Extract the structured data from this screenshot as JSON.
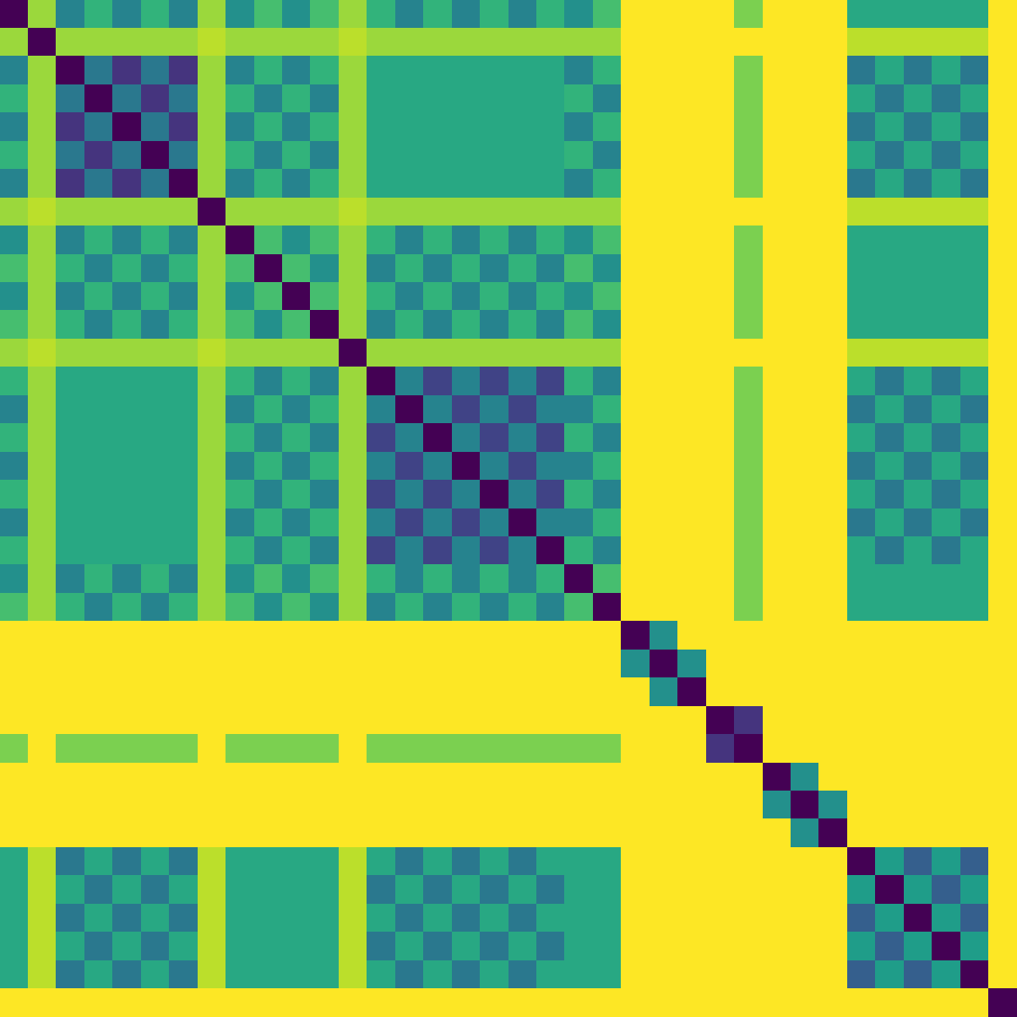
{
  "chart_data": {
    "type": "heatmap",
    "grid": false,
    "tick_labels": false,
    "cells": [
      [
        0,
        0.85,
        0.45,
        0.65,
        0.45,
        0.65,
        0.45,
        0.85,
        0.5,
        0.7,
        0.5,
        0.7,
        0.85,
        0.65,
        0.45,
        0.65,
        0.45,
        0.65,
        0.45,
        0.65,
        0.5,
        0.7,
        1,
        1,
        1,
        1,
        0.8,
        1,
        1,
        1,
        0.6,
        0.6,
        0.6,
        0.6,
        0.6,
        1
      ],
      [
        0.85,
        0,
        0.85,
        0.85,
        0.85,
        0.85,
        0.85,
        0.9,
        0.85,
        0.85,
        0.85,
        0.85,
        0.9,
        0.85,
        0.85,
        0.85,
        0.85,
        0.85,
        0.85,
        0.85,
        0.85,
        0.85,
        1,
        1,
        1,
        1,
        1,
        1,
        1,
        1,
        0.9,
        0.9,
        0.9,
        0.9,
        0.9,
        1
      ],
      [
        0.45,
        0.85,
        0,
        0.4,
        0.15,
        0.4,
        0.15,
        0.85,
        0.45,
        0.65,
        0.45,
        0.65,
        0.85,
        0.6,
        0.6,
        0.6,
        0.6,
        0.6,
        0.6,
        0.6,
        0.45,
        0.65,
        1,
        1,
        1,
        1,
        0.8,
        1,
        1,
        1,
        0.4,
        0.6,
        0.4,
        0.6,
        0.4,
        1
      ],
      [
        0.65,
        0.85,
        0.4,
        0,
        0.4,
        0.15,
        0.4,
        0.85,
        0.65,
        0.45,
        0.65,
        0.45,
        0.85,
        0.6,
        0.6,
        0.6,
        0.6,
        0.6,
        0.6,
        0.6,
        0.65,
        0.45,
        1,
        1,
        1,
        1,
        0.8,
        1,
        1,
        1,
        0.6,
        0.4,
        0.6,
        0.4,
        0.6,
        1
      ],
      [
        0.45,
        0.85,
        0.15,
        0.4,
        0,
        0.4,
        0.15,
        0.85,
        0.45,
        0.65,
        0.45,
        0.65,
        0.85,
        0.6,
        0.6,
        0.6,
        0.6,
        0.6,
        0.6,
        0.6,
        0.45,
        0.65,
        1,
        1,
        1,
        1,
        0.8,
        1,
        1,
        1,
        0.4,
        0.6,
        0.4,
        0.6,
        0.4,
        1
      ],
      [
        0.65,
        0.85,
        0.4,
        0.15,
        0.4,
        0,
        0.4,
        0.85,
        0.65,
        0.45,
        0.65,
        0.45,
        0.85,
        0.6,
        0.6,
        0.6,
        0.6,
        0.6,
        0.6,
        0.6,
        0.65,
        0.45,
        1,
        1,
        1,
        1,
        0.8,
        1,
        1,
        1,
        0.6,
        0.4,
        0.6,
        0.4,
        0.6,
        1
      ],
      [
        0.45,
        0.85,
        0.15,
        0.4,
        0.15,
        0.4,
        0,
        0.85,
        0.45,
        0.65,
        0.45,
        0.65,
        0.85,
        0.6,
        0.6,
        0.6,
        0.6,
        0.6,
        0.6,
        0.6,
        0.45,
        0.65,
        1,
        1,
        1,
        1,
        0.8,
        1,
        1,
        1,
        0.4,
        0.6,
        0.4,
        0.6,
        0.4,
        1
      ],
      [
        0.85,
        0.9,
        0.85,
        0.85,
        0.85,
        0.85,
        0.85,
        0,
        0.85,
        0.85,
        0.85,
        0.85,
        0.9,
        0.85,
        0.85,
        0.85,
        0.85,
        0.85,
        0.85,
        0.85,
        0.85,
        0.85,
        1,
        1,
        1,
        1,
        1,
        1,
        1,
        1,
        0.9,
        0.9,
        0.9,
        0.9,
        0.9,
        1
      ],
      [
        0.5,
        0.85,
        0.45,
        0.65,
        0.45,
        0.65,
        0.45,
        0.85,
        0,
        0.7,
        0.5,
        0.7,
        0.85,
        0.65,
        0.45,
        0.65,
        0.45,
        0.65,
        0.45,
        0.65,
        0.5,
        0.7,
        1,
        1,
        1,
        1,
        0.8,
        1,
        1,
        1,
        0.6,
        0.6,
        0.6,
        0.6,
        0.6,
        1
      ],
      [
        0.7,
        0.85,
        0.65,
        0.45,
        0.65,
        0.45,
        0.65,
        0.85,
        0.7,
        0,
        0.7,
        0.5,
        0.85,
        0.45,
        0.65,
        0.45,
        0.65,
        0.45,
        0.65,
        0.45,
        0.7,
        0.5,
        1,
        1,
        1,
        1,
        0.8,
        1,
        1,
        1,
        0.6,
        0.6,
        0.6,
        0.6,
        0.6,
        1
      ],
      [
        0.5,
        0.85,
        0.45,
        0.65,
        0.45,
        0.65,
        0.45,
        0.85,
        0.5,
        0.7,
        0,
        0.7,
        0.85,
        0.65,
        0.45,
        0.65,
        0.45,
        0.65,
        0.45,
        0.65,
        0.5,
        0.7,
        1,
        1,
        1,
        1,
        0.8,
        1,
        1,
        1,
        0.6,
        0.6,
        0.6,
        0.6,
        0.6,
        1
      ],
      [
        0.7,
        0.85,
        0.65,
        0.45,
        0.65,
        0.45,
        0.65,
        0.85,
        0.7,
        0.5,
        0.7,
        0,
        0.85,
        0.45,
        0.65,
        0.45,
        0.65,
        0.45,
        0.65,
        0.45,
        0.7,
        0.5,
        1,
        1,
        1,
        1,
        0.8,
        1,
        1,
        1,
        0.6,
        0.6,
        0.6,
        0.6,
        0.6,
        1
      ],
      [
        0.85,
        0.9,
        0.85,
        0.85,
        0.85,
        0.85,
        0.85,
        0.9,
        0.85,
        0.85,
        0.85,
        0.85,
        0,
        0.85,
        0.85,
        0.85,
        0.85,
        0.85,
        0.85,
        0.85,
        0.85,
        0.85,
        1,
        1,
        1,
        1,
        1,
        1,
        1,
        1,
        0.9,
        0.9,
        0.9,
        0.9,
        0.9,
        1
      ],
      [
        0.65,
        0.85,
        0.6,
        0.6,
        0.6,
        0.6,
        0.6,
        0.85,
        0.65,
        0.45,
        0.65,
        0.45,
        0.85,
        0,
        0.45,
        0.2,
        0.45,
        0.2,
        0.45,
        0.2,
        0.65,
        0.45,
        1,
        1,
        1,
        1,
        0.8,
        1,
        1,
        1,
        0.6,
        0.4,
        0.6,
        0.4,
        0.6,
        1
      ],
      [
        0.45,
        0.85,
        0.6,
        0.6,
        0.6,
        0.6,
        0.6,
        0.85,
        0.45,
        0.65,
        0.45,
        0.65,
        0.85,
        0.45,
        0,
        0.45,
        0.2,
        0.45,
        0.2,
        0.45,
        0.45,
        0.65,
        1,
        1,
        1,
        1,
        0.8,
        1,
        1,
        1,
        0.4,
        0.6,
        0.4,
        0.6,
        0.4,
        1
      ],
      [
        0.65,
        0.85,
        0.6,
        0.6,
        0.6,
        0.6,
        0.6,
        0.85,
        0.65,
        0.45,
        0.65,
        0.45,
        0.85,
        0.2,
        0.45,
        0,
        0.45,
        0.2,
        0.45,
        0.2,
        0.65,
        0.45,
        1,
        1,
        1,
        1,
        0.8,
        1,
        1,
        1,
        0.6,
        0.4,
        0.6,
        0.4,
        0.6,
        1
      ],
      [
        0.45,
        0.85,
        0.6,
        0.6,
        0.6,
        0.6,
        0.6,
        0.85,
        0.45,
        0.65,
        0.45,
        0.65,
        0.85,
        0.45,
        0.2,
        0.45,
        0,
        0.45,
        0.2,
        0.45,
        0.45,
        0.65,
        1,
        1,
        1,
        1,
        0.8,
        1,
        1,
        1,
        0.4,
        0.6,
        0.4,
        0.6,
        0.4,
        1
      ],
      [
        0.65,
        0.85,
        0.6,
        0.6,
        0.6,
        0.6,
        0.6,
        0.85,
        0.65,
        0.45,
        0.65,
        0.45,
        0.85,
        0.2,
        0.45,
        0.2,
        0.45,
        0,
        0.45,
        0.2,
        0.65,
        0.45,
        1,
        1,
        1,
        1,
        0.8,
        1,
        1,
        1,
        0.6,
        0.4,
        0.6,
        0.4,
        0.6,
        1
      ],
      [
        0.45,
        0.85,
        0.6,
        0.6,
        0.6,
        0.6,
        0.6,
        0.85,
        0.45,
        0.65,
        0.45,
        0.65,
        0.85,
        0.45,
        0.2,
        0.45,
        0.2,
        0.45,
        0,
        0.45,
        0.45,
        0.65,
        1,
        1,
        1,
        1,
        0.8,
        1,
        1,
        1,
        0.4,
        0.6,
        0.4,
        0.6,
        0.4,
        1
      ],
      [
        0.65,
        0.85,
        0.6,
        0.6,
        0.6,
        0.6,
        0.6,
        0.85,
        0.65,
        0.45,
        0.65,
        0.45,
        0.85,
        0.2,
        0.45,
        0.2,
        0.45,
        0.2,
        0.45,
        0,
        0.65,
        0.45,
        1,
        1,
        1,
        1,
        0.8,
        1,
        1,
        1,
        0.6,
        0.4,
        0.6,
        0.4,
        0.6,
        1
      ],
      [
        0.5,
        0.85,
        0.45,
        0.65,
        0.45,
        0.65,
        0.45,
        0.85,
        0.5,
        0.7,
        0.5,
        0.7,
        0.85,
        0.65,
        0.45,
        0.65,
        0.45,
        0.65,
        0.45,
        0.65,
        0,
        0.7,
        1,
        1,
        1,
        1,
        0.8,
        1,
        1,
        1,
        0.6,
        0.6,
        0.6,
        0.6,
        0.6,
        1
      ],
      [
        0.7,
        0.85,
        0.65,
        0.45,
        0.65,
        0.45,
        0.65,
        0.85,
        0.7,
        0.5,
        0.7,
        0.5,
        0.85,
        0.45,
        0.65,
        0.45,
        0.65,
        0.45,
        0.65,
        0.45,
        0.7,
        0,
        1,
        1,
        1,
        1,
        0.8,
        1,
        1,
        1,
        0.6,
        0.6,
        0.6,
        0.6,
        0.6,
        1
      ],
      [
        1,
        1,
        1,
        1,
        1,
        1,
        1,
        1,
        1,
        1,
        1,
        1,
        1,
        1,
        1,
        1,
        1,
        1,
        1,
        1,
        1,
        1,
        0,
        0.5,
        1,
        1,
        1,
        1,
        1,
        1,
        1,
        1,
        1,
        1,
        1,
        1
      ],
      [
        1,
        1,
        1,
        1,
        1,
        1,
        1,
        1,
        1,
        1,
        1,
        1,
        1,
        1,
        1,
        1,
        1,
        1,
        1,
        1,
        1,
        1,
        0.5,
        0,
        0.5,
        1,
        1,
        1,
        1,
        1,
        1,
        1,
        1,
        1,
        1,
        1
      ],
      [
        1,
        1,
        1,
        1,
        1,
        1,
        1,
        1,
        1,
        1,
        1,
        1,
        1,
        1,
        1,
        1,
        1,
        1,
        1,
        1,
        1,
        1,
        1,
        0.5,
        0,
        1,
        1,
        1,
        1,
        1,
        1,
        1,
        1,
        1,
        1,
        1
      ],
      [
        1,
        1,
        1,
        1,
        1,
        1,
        1,
        1,
        1,
        1,
        1,
        1,
        1,
        1,
        1,
        1,
        1,
        1,
        1,
        1,
        1,
        1,
        1,
        1,
        1,
        0,
        0.15,
        1,
        1,
        1,
        1,
        1,
        1,
        1,
        1,
        1
      ],
      [
        0.8,
        1,
        0.8,
        0.8,
        0.8,
        0.8,
        0.8,
        1,
        0.8,
        0.8,
        0.8,
        0.8,
        1,
        0.8,
        0.8,
        0.8,
        0.8,
        0.8,
        0.8,
        0.8,
        0.8,
        0.8,
        1,
        1,
        1,
        0.15,
        0,
        1,
        1,
        1,
        1,
        1,
        1,
        1,
        1,
        1
      ],
      [
        1,
        1,
        1,
        1,
        1,
        1,
        1,
        1,
        1,
        1,
        1,
        1,
        1,
        1,
        1,
        1,
        1,
        1,
        1,
        1,
        1,
        1,
        1,
        1,
        1,
        1,
        1,
        0,
        0.5,
        1,
        1,
        1,
        1,
        1,
        1,
        1
      ],
      [
        1,
        1,
        1,
        1,
        1,
        1,
        1,
        1,
        1,
        1,
        1,
        1,
        1,
        1,
        1,
        1,
        1,
        1,
        1,
        1,
        1,
        1,
        1,
        1,
        1,
        1,
        1,
        0.5,
        0,
        0.5,
        1,
        1,
        1,
        1,
        1,
        1
      ],
      [
        1,
        1,
        1,
        1,
        1,
        1,
        1,
        1,
        1,
        1,
        1,
        1,
        1,
        1,
        1,
        1,
        1,
        1,
        1,
        1,
        1,
        1,
        1,
        1,
        1,
        1,
        1,
        1,
        0.5,
        0,
        1,
        1,
        1,
        1,
        1,
        1
      ],
      [
        0.6,
        0.9,
        0.4,
        0.6,
        0.4,
        0.6,
        0.4,
        0.9,
        0.6,
        0.6,
        0.6,
        0.6,
        0.9,
        0.6,
        0.4,
        0.6,
        0.4,
        0.6,
        0.4,
        0.6,
        0.6,
        0.6,
        1,
        1,
        1,
        1,
        1,
        1,
        1,
        1,
        0,
        0.55,
        0.3,
        0.55,
        0.3,
        1
      ],
      [
        0.6,
        0.9,
        0.6,
        0.4,
        0.6,
        0.4,
        0.6,
        0.9,
        0.6,
        0.6,
        0.6,
        0.6,
        0.9,
        0.4,
        0.6,
        0.4,
        0.6,
        0.4,
        0.6,
        0.4,
        0.6,
        0.6,
        1,
        1,
        1,
        1,
        1,
        1,
        1,
        1,
        0.55,
        0,
        0.55,
        0.3,
        0.55,
        1
      ],
      [
        0.6,
        0.9,
        0.4,
        0.6,
        0.4,
        0.6,
        0.4,
        0.9,
        0.6,
        0.6,
        0.6,
        0.6,
        0.9,
        0.6,
        0.4,
        0.6,
        0.4,
        0.6,
        0.4,
        0.6,
        0.6,
        0.6,
        1,
        1,
        1,
        1,
        1,
        1,
        1,
        1,
        0.3,
        0.55,
        0,
        0.55,
        0.3,
        1
      ],
      [
        0.6,
        0.9,
        0.6,
        0.4,
        0.6,
        0.4,
        0.6,
        0.9,
        0.6,
        0.6,
        0.6,
        0.6,
        0.9,
        0.4,
        0.6,
        0.4,
        0.6,
        0.4,
        0.6,
        0.4,
        0.6,
        0.6,
        1,
        1,
        1,
        1,
        1,
        1,
        1,
        1,
        0.55,
        0.3,
        0.55,
        0,
        0.55,
        1
      ],
      [
        0.6,
        0.9,
        0.4,
        0.6,
        0.4,
        0.6,
        0.4,
        0.9,
        0.6,
        0.6,
        0.6,
        0.6,
        0.9,
        0.6,
        0.4,
        0.6,
        0.4,
        0.6,
        0.4,
        0.6,
        0.6,
        0.6,
        1,
        1,
        1,
        1,
        1,
        1,
        1,
        1,
        0.3,
        0.55,
        0.3,
        0.55,
        0,
        1
      ],
      [
        1,
        1,
        1,
        1,
        1,
        1,
        1,
        1,
        1,
        1,
        1,
        1,
        1,
        1,
        1,
        1,
        1,
        1,
        1,
        1,
        1,
        1,
        1,
        1,
        1,
        1,
        1,
        1,
        1,
        1,
        1,
        1,
        1,
        1,
        1,
        0
      ]
    ]
  }
}
